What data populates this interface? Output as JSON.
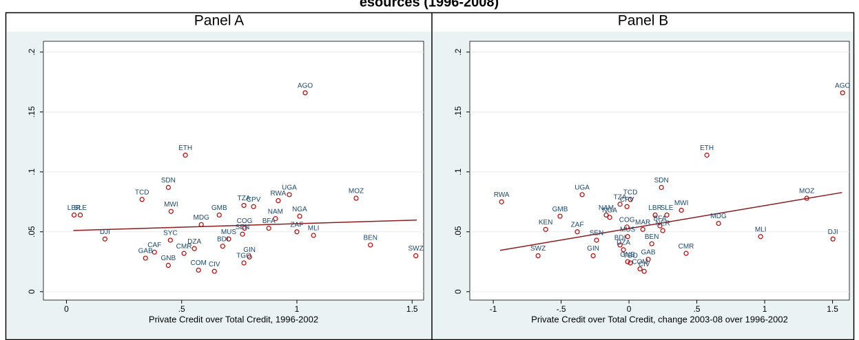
{
  "title": "esources (1996-2008)",
  "chart_data": [
    {
      "type": "scatter",
      "title": "Panel A",
      "xlabel": "Private Credit over Total Credit, 1996-2002",
      "color": "#c10000",
      "label_color": "#1a476f",
      "line_color": "#8b1a1a",
      "grid": true,
      "xlim": [
        -0.1,
        1.55
      ],
      "ylim": [
        -0.007,
        0.209
      ],
      "xticks": [
        0,
        {
          "value": 0.5,
          "label": ".5"
        },
        1,
        {
          "value": 1.5,
          "label": "1.5"
        }
      ],
      "yticks": [
        0,
        {
          "value": 0.05,
          "label": ".05"
        },
        {
          "value": 0.1,
          "label": ".1"
        },
        {
          "value": 0.15,
          "label": ".15"
        },
        {
          "value": 0.2,
          "label": ".2"
        }
      ],
      "labels": [
        "AGO",
        "ETH",
        "SDN",
        "TCD",
        "MWI",
        "LBR",
        "SLE",
        "DJI",
        "UGA",
        "RWA",
        "MOZ",
        "TZA",
        "CPV",
        "NAM",
        "NGA",
        "GMB",
        "MDG",
        "ZAF",
        "MLI",
        "BEN",
        "SWZ",
        "COG",
        "SEN",
        "BFA",
        "MUS",
        "BDI",
        "SYC",
        "CAF",
        "GAB",
        "CMR",
        "DZA",
        "GNB",
        "COM",
        "CIV",
        "GIN",
        "TGO"
      ],
      "x": [
        1.036,
        0.516,
        0.442,
        0.328,
        0.454,
        0.033,
        0.06,
        0.167,
        0.967,
        0.919,
        1.257,
        0.77,
        0.812,
        0.907,
        1.012,
        0.663,
        0.585,
        1.0,
        1.072,
        1.319,
        1.516,
        0.773,
        0.764,
        0.878,
        0.704,
        0.678,
        0.451,
        0.382,
        0.343,
        0.51,
        0.555,
        0.442,
        0.573,
        0.642,
        0.794,
        0.77
      ],
      "values": [
        0.166,
        0.114,
        0.087,
        0.077,
        0.067,
        0.064,
        0.064,
        0.044,
        0.081,
        0.076,
        0.078,
        0.072,
        0.071,
        0.061,
        0.063,
        0.064,
        0.056,
        0.05,
        0.047,
        0.039,
        0.03,
        0.053,
        0.048,
        0.053,
        0.044,
        0.038,
        0.043,
        0.033,
        0.028,
        0.032,
        0.036,
        0.022,
        0.018,
        0.017,
        0.029,
        0.024
      ],
      "fit": {
        "x": [
          0.03,
          1.52
        ],
        "values": [
          0.0511,
          0.0598
        ]
      }
    },
    {
      "type": "scatter",
      "title": "Panel B",
      "xlabel": "Private Credit over Total Credit, change 2003-08 over 1996-2002",
      "color": "#c10000",
      "label_color": "#1a476f",
      "line_color": "#8b1a1a",
      "grid": true,
      "xlim": [
        -1.173,
        1.624
      ],
      "ylim": [
        -0.007,
        0.209
      ],
      "xticks": [
        -1,
        {
          "value": -0.5,
          "label": "-.5"
        },
        0,
        {
          "value": 0.5,
          "label": ".5"
        },
        1,
        {
          "value": 1.5,
          "label": "1.5"
        }
      ],
      "yticks": [
        0,
        {
          "value": 0.05,
          "label": ".05"
        },
        {
          "value": 0.1,
          "label": ".1"
        },
        {
          "value": 0.15,
          "label": ".15"
        },
        {
          "value": 0.2,
          "label": ".2"
        }
      ],
      "labels": [
        "AGO",
        "ETH",
        "SDN",
        "RWA",
        "UGA",
        "MOZ",
        "TCD",
        "TZA",
        "GMB",
        "KEN",
        "SWZ",
        "ZAF",
        "SEN",
        "GIN",
        "MWI",
        "LBR",
        "SLE",
        "MDG",
        "MLI",
        "DJI",
        "CMR",
        "BEN",
        "GAB",
        "BFA",
        "NER",
        "MAR",
        "CIV",
        "COM",
        "TGO",
        "GNB",
        "NGA",
        "NAM",
        "CPV",
        "COG",
        "MUS",
        "BDI",
        "DZA"
      ],
      "x": [
        1.574,
        0.574,
        0.239,
        -0.939,
        -0.345,
        1.31,
        0.01,
        -0.066,
        -0.508,
        -0.614,
        -0.67,
        -0.381,
        -0.239,
        -0.264,
        0.386,
        0.193,
        0.279,
        0.66,
        0.97,
        1.503,
        0.421,
        0.168,
        0.142,
        0.228,
        0.249,
        0.102,
        0.112,
        0.081,
        0.01,
        -0.01,
        -0.142,
        -0.168,
        -0.015,
        -0.015,
        -0.01,
        -0.066,
        -0.041
      ],
      "values": [
        0.166,
        0.114,
        0.087,
        0.075,
        0.081,
        0.078,
        0.077,
        0.073,
        0.063,
        0.052,
        0.03,
        0.05,
        0.043,
        0.03,
        0.068,
        0.064,
        0.064,
        0.057,
        0.046,
        0.044,
        0.032,
        0.04,
        0.027,
        0.055,
        0.051,
        0.052,
        0.017,
        0.019,
        0.024,
        0.025,
        0.062,
        0.064,
        0.071,
        0.054,
        0.046,
        0.039,
        0.035
      ],
      "fit": {
        "x": [
          -0.95,
          1.57
        ],
        "values": [
          0.0345,
          0.0828
        ]
      }
    }
  ]
}
